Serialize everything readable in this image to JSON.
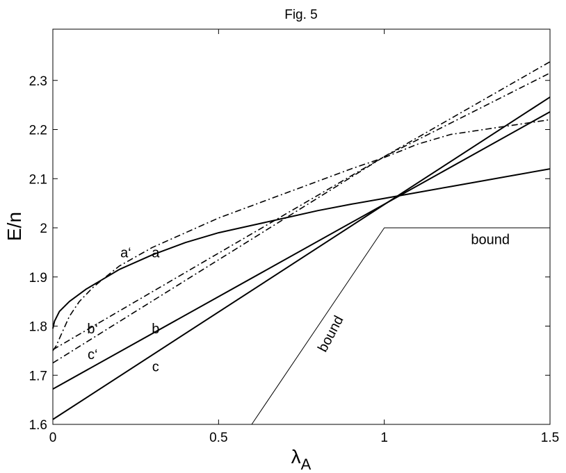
{
  "chart_data": {
    "type": "line",
    "title": "Fig. 5",
    "xlabel": "λ",
    "xlabel_sub": "A",
    "ylabel": "E/n",
    "xlim": [
      0,
      1.5
    ],
    "ylim": [
      1.6,
      2.4
    ],
    "xticks": [
      0,
      0.5,
      1,
      1.5
    ],
    "xtick_labels": [
      "0",
      "0.5",
      "1",
      "1.5"
    ],
    "yticks": [
      1.6,
      1.7,
      1.8,
      1.9,
      2.0,
      2.1,
      2.2,
      2.3
    ],
    "ytick_labels": [
      "1.6",
      "1.7",
      "1.8",
      "1.9",
      "2",
      "2.1",
      "2.2",
      "2.3"
    ],
    "grid": false,
    "series": [
      {
        "label": "a",
        "style": "solid",
        "x": [
          0,
          0.005,
          0.02,
          0.05,
          0.1,
          0.15,
          0.2,
          0.3,
          0.4,
          0.5,
          0.6,
          0.7,
          0.8,
          0.9,
          1.0,
          1.1,
          1.2,
          1.3,
          1.4,
          1.5
        ],
        "y": [
          1.795,
          1.81,
          1.83,
          1.85,
          1.875,
          1.895,
          1.915,
          1.945,
          1.97,
          1.99,
          2.005,
          2.02,
          2.035,
          2.048,
          2.06,
          2.072,
          2.084,
          2.096,
          2.108,
          2.12
        ]
      },
      {
        "label": "b",
        "style": "solid",
        "x": [
          0,
          1.5
        ],
        "y": [
          1.672,
          2.236
        ]
      },
      {
        "label": "c",
        "style": "solid",
        "x": [
          0,
          1.5
        ],
        "y": [
          1.61,
          2.266
        ]
      },
      {
        "label": "a‘",
        "style": "dashdot",
        "x": [
          0,
          0.01,
          0.03,
          0.05,
          0.08,
          0.12,
          0.15,
          0.2,
          0.3,
          0.4,
          0.5,
          0.6,
          0.7,
          0.8,
          0.9,
          1.0,
          1.1,
          1.2,
          1.3,
          1.4,
          1.5
        ],
        "y": [
          1.75,
          1.76,
          1.79,
          1.82,
          1.85,
          1.878,
          1.895,
          1.922,
          1.96,
          1.99,
          2.02,
          2.045,
          2.07,
          2.095,
          2.12,
          2.143,
          2.17,
          2.19,
          2.2,
          2.21,
          2.22
        ]
      },
      {
        "label": "b‘",
        "style": "dashdot",
        "x": [
          0,
          1.0,
          1.5
        ],
        "y": [
          1.752,
          2.145,
          2.338
        ]
      },
      {
        "label": "c‘",
        "style": "dashdot",
        "x": [
          0,
          1.0,
          1.5
        ],
        "y": [
          1.725,
          2.145,
          2.315
        ]
      },
      {
        "label": "bound",
        "style": "thin",
        "x": [
          0.6,
          1.0,
          1.5
        ],
        "y": [
          1.6,
          2.0,
          2.0
        ]
      }
    ],
    "annotations": [
      {
        "text": "a‘",
        "x": 0.22,
        "y": 1.94
      },
      {
        "text": "a",
        "x": 0.31,
        "y": 1.94
      },
      {
        "text": "b‘",
        "x": 0.12,
        "y": 1.785
      },
      {
        "text": "b",
        "x": 0.31,
        "y": 1.785
      },
      {
        "text": "c‘",
        "x": 0.12,
        "y": 1.733
      },
      {
        "text": "c",
        "x": 0.31,
        "y": 1.708
      },
      {
        "text": "bound",
        "x": 1.32,
        "y": 1.967
      },
      {
        "text": "bound",
        "x": 0.85,
        "y": 1.78,
        "rotation": -62
      }
    ]
  }
}
